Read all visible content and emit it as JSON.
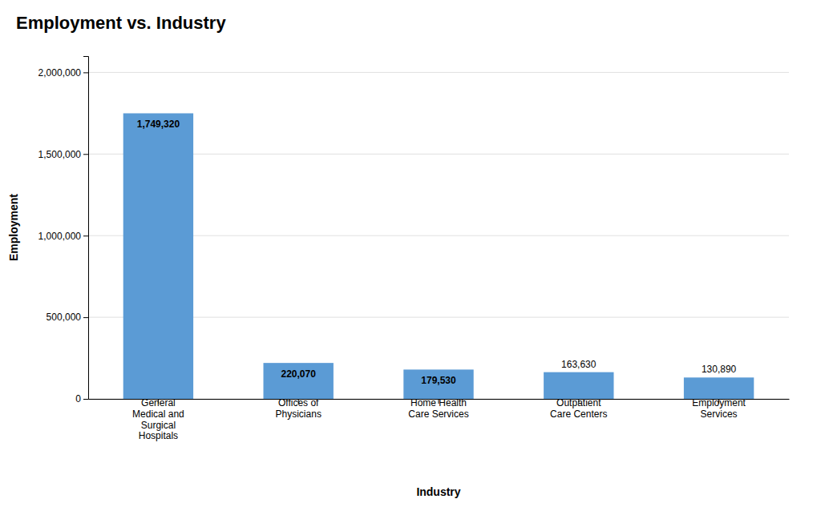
{
  "chart_data": {
    "type": "bar",
    "title": "Employment  vs. Industry",
    "x_label": "Industry",
    "y_label": "Employment",
    "categories": [
      "General\nMedical and\nSurgical\nHospitals",
      "Offices of\nPhysicians",
      "Home Health\nCare Services",
      "Outpatient\nCare Centers",
      "Employment\nServices"
    ],
    "values": [
      1749320,
      220070,
      179530,
      163630,
      130890
    ],
    "value_labels": [
      "1,749,320",
      "220,070",
      "179,530",
      "163,630",
      "130,890"
    ],
    "data_labels": true,
    "color": "#5B9BD5",
    "ylim": [
      0,
      2100000
    ],
    "yticks": [
      0,
      {
        "value": 500000,
        "label": "500,000"
      },
      {
        "value": 1000000,
        "label": "1,000,000"
      },
      {
        "value": 1500000,
        "label": "1,500,000"
      },
      {
        "value": 2000000,
        "label": "2,000,000"
      }
    ],
    "grid": true
  }
}
